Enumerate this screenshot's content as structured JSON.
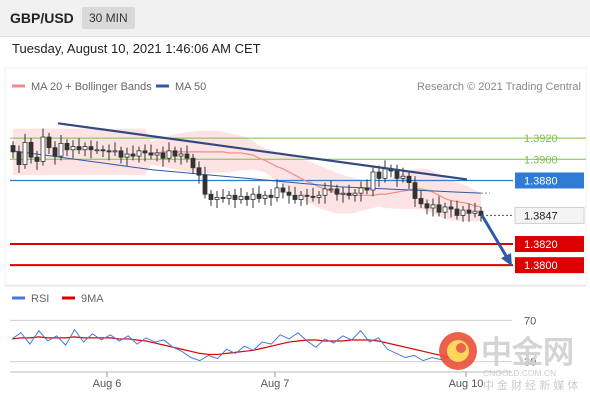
{
  "header": {
    "pair": "GBP/USD",
    "timeframe": "30 MIN",
    "datetime": "Tuesday, August 10, 2021 1:46:06 AM CET"
  },
  "legend": {
    "ma20": "MA 20 + Bollinger Bands",
    "ma50": "MA 50",
    "ma20_color": "#f08b8b",
    "ma50_color": "#2e5aa8",
    "rsi": "RSI",
    "ma9": "9MA",
    "rsi_color": "#4a78d8",
    "ma9_color": "#dd0000"
  },
  "copyright": "Research © 2021 Trading Central",
  "watermark": {
    "chinese": "中金网",
    "url": "CNGOLD.COM.CN",
    "tagline": "中 金 财 经 新 媒 体"
  },
  "chart_data": {
    "type": "candlestick",
    "instrument": "GBP/USD",
    "timeframe": "30 MIN",
    "ylim": [
      1.3786,
      1.3956
    ],
    "x_tick_labels": [
      "Aug 6",
      "Aug 7",
      "Aug 10"
    ],
    "close_series": [
      1.3907,
      1.3895,
      1.3916,
      1.3902,
      1.3898,
      1.3921,
      1.3911,
      1.3903,
      1.3915,
      1.3909,
      1.3912,
      1.3909,
      1.3912,
      1.3909,
      1.3909,
      1.3908,
      1.3907,
      1.3908,
      1.3902,
      1.3905,
      1.3903,
      1.3908,
      1.3906,
      1.3904,
      1.3906,
      1.3901,
      1.3908,
      1.3903,
      1.3905,
      1.3901,
      1.3892,
      1.3885,
      1.3867,
      1.3862,
      1.3864,
      1.3863,
      1.3866,
      1.3862,
      1.3865,
      1.3862,
      1.3867,
      1.3863,
      1.3866,
      1.3864,
      1.3873,
      1.3869,
      1.3866,
      1.3862,
      1.3866,
      1.3865,
      1.3864,
      1.3866,
      1.3872,
      1.3872,
      1.3867,
      1.3868,
      1.3866,
      1.3868,
      1.3873,
      1.3871,
      1.3888,
      1.3882,
      1.3891,
      1.3889,
      1.3882,
      1.3884,
      1.3878,
      1.3863,
      1.3858,
      1.3854,
      1.3857,
      1.385,
      1.3855,
      1.3853,
      1.3847,
      1.3852,
      1.3849,
      1.3851,
      1.3847
    ],
    "ma20": [
      1.3906,
      1.3906,
      1.3907,
      1.3907,
      1.3907,
      1.3907,
      1.3907,
      1.3907,
      1.3907,
      1.3907,
      1.3907,
      1.3907,
      1.3907,
      1.3906,
      1.3906,
      1.3906,
      1.3905,
      1.3904,
      1.3901,
      1.3899,
      1.3896,
      1.3893,
      1.3891,
      1.3888,
      1.3885,
      1.3882,
      1.3879,
      1.3877,
      1.3874,
      1.3872,
      1.387,
      1.3868,
      1.3867,
      1.3866,
      1.3866,
      1.3866,
      1.3866,
      1.3866,
      1.3867,
      1.3867,
      1.3868,
      1.3869,
      1.387,
      1.3871,
      1.3872,
      1.3872,
      1.3871,
      1.3869,
      1.3866,
      1.3863,
      1.3861,
      1.386,
      1.3859,
      1.3858,
      1.3856,
      1.3855
    ],
    "ma50": [
      1.3908,
      1.3905,
      1.3902,
      1.3899,
      1.3896,
      1.3893,
      1.389,
      1.3888,
      1.3886,
      1.3884,
      1.3882,
      1.388,
      1.3878,
      1.3876,
      1.3874,
      1.3873,
      1.3872,
      1.3871,
      1.387,
      1.3869,
      1.3868
    ],
    "trendline": [
      [
        0,
        1.3934
      ],
      [
        77,
        1.3881
      ]
    ],
    "levels": [
      {
        "label": "1.3920",
        "type": "resistance",
        "color": "#7cbf4a"
      },
      {
        "label": "1.3900",
        "type": "resistance",
        "color": "#7cbf4a"
      },
      {
        "label": "1.3880",
        "type": "pivot",
        "color": "#2f7bd6"
      },
      {
        "label": "1.3847",
        "type": "last",
        "color": "#222222"
      },
      {
        "label": "1.3820",
        "type": "support",
        "color": "#dd0000"
      },
      {
        "label": "1.3800",
        "type": "support",
        "color": "#dd0000"
      }
    ],
    "forecast_arrow": {
      "from": 1.3847,
      "to": 1.38,
      "color": "#2e5aa8"
    },
    "rsi": {
      "ylim": [
        20,
        80
      ],
      "levels": [
        {
          "label": "70",
          "value": 70
        },
        {
          "label": "30",
          "value": 30
        }
      ],
      "rsi_series": [
        52,
        58,
        47,
        60,
        50,
        55,
        46,
        61,
        49,
        57,
        51,
        56,
        50,
        55,
        47,
        53,
        49,
        51,
        44,
        40,
        34,
        31,
        36,
        33,
        42,
        38,
        45,
        41,
        49,
        47,
        56,
        52,
        58,
        50,
        44,
        52,
        48,
        55,
        51,
        60,
        49,
        53,
        42,
        38,
        34,
        36,
        31,
        34,
        32,
        35
      ],
      "ma9_series": [
        52,
        53,
        53,
        54,
        53,
        53,
        53,
        54,
        53,
        53,
        53,
        53,
        52,
        52,
        51,
        50,
        48,
        46,
        44,
        42,
        40,
        38,
        37,
        37,
        38,
        39,
        40,
        41,
        43,
        45,
        47,
        49,
        50,
        51,
        51,
        50,
        50,
        50,
        51,
        51,
        51,
        50,
        48,
        46,
        44,
        42,
        40,
        38,
        36,
        34
      ]
    }
  }
}
